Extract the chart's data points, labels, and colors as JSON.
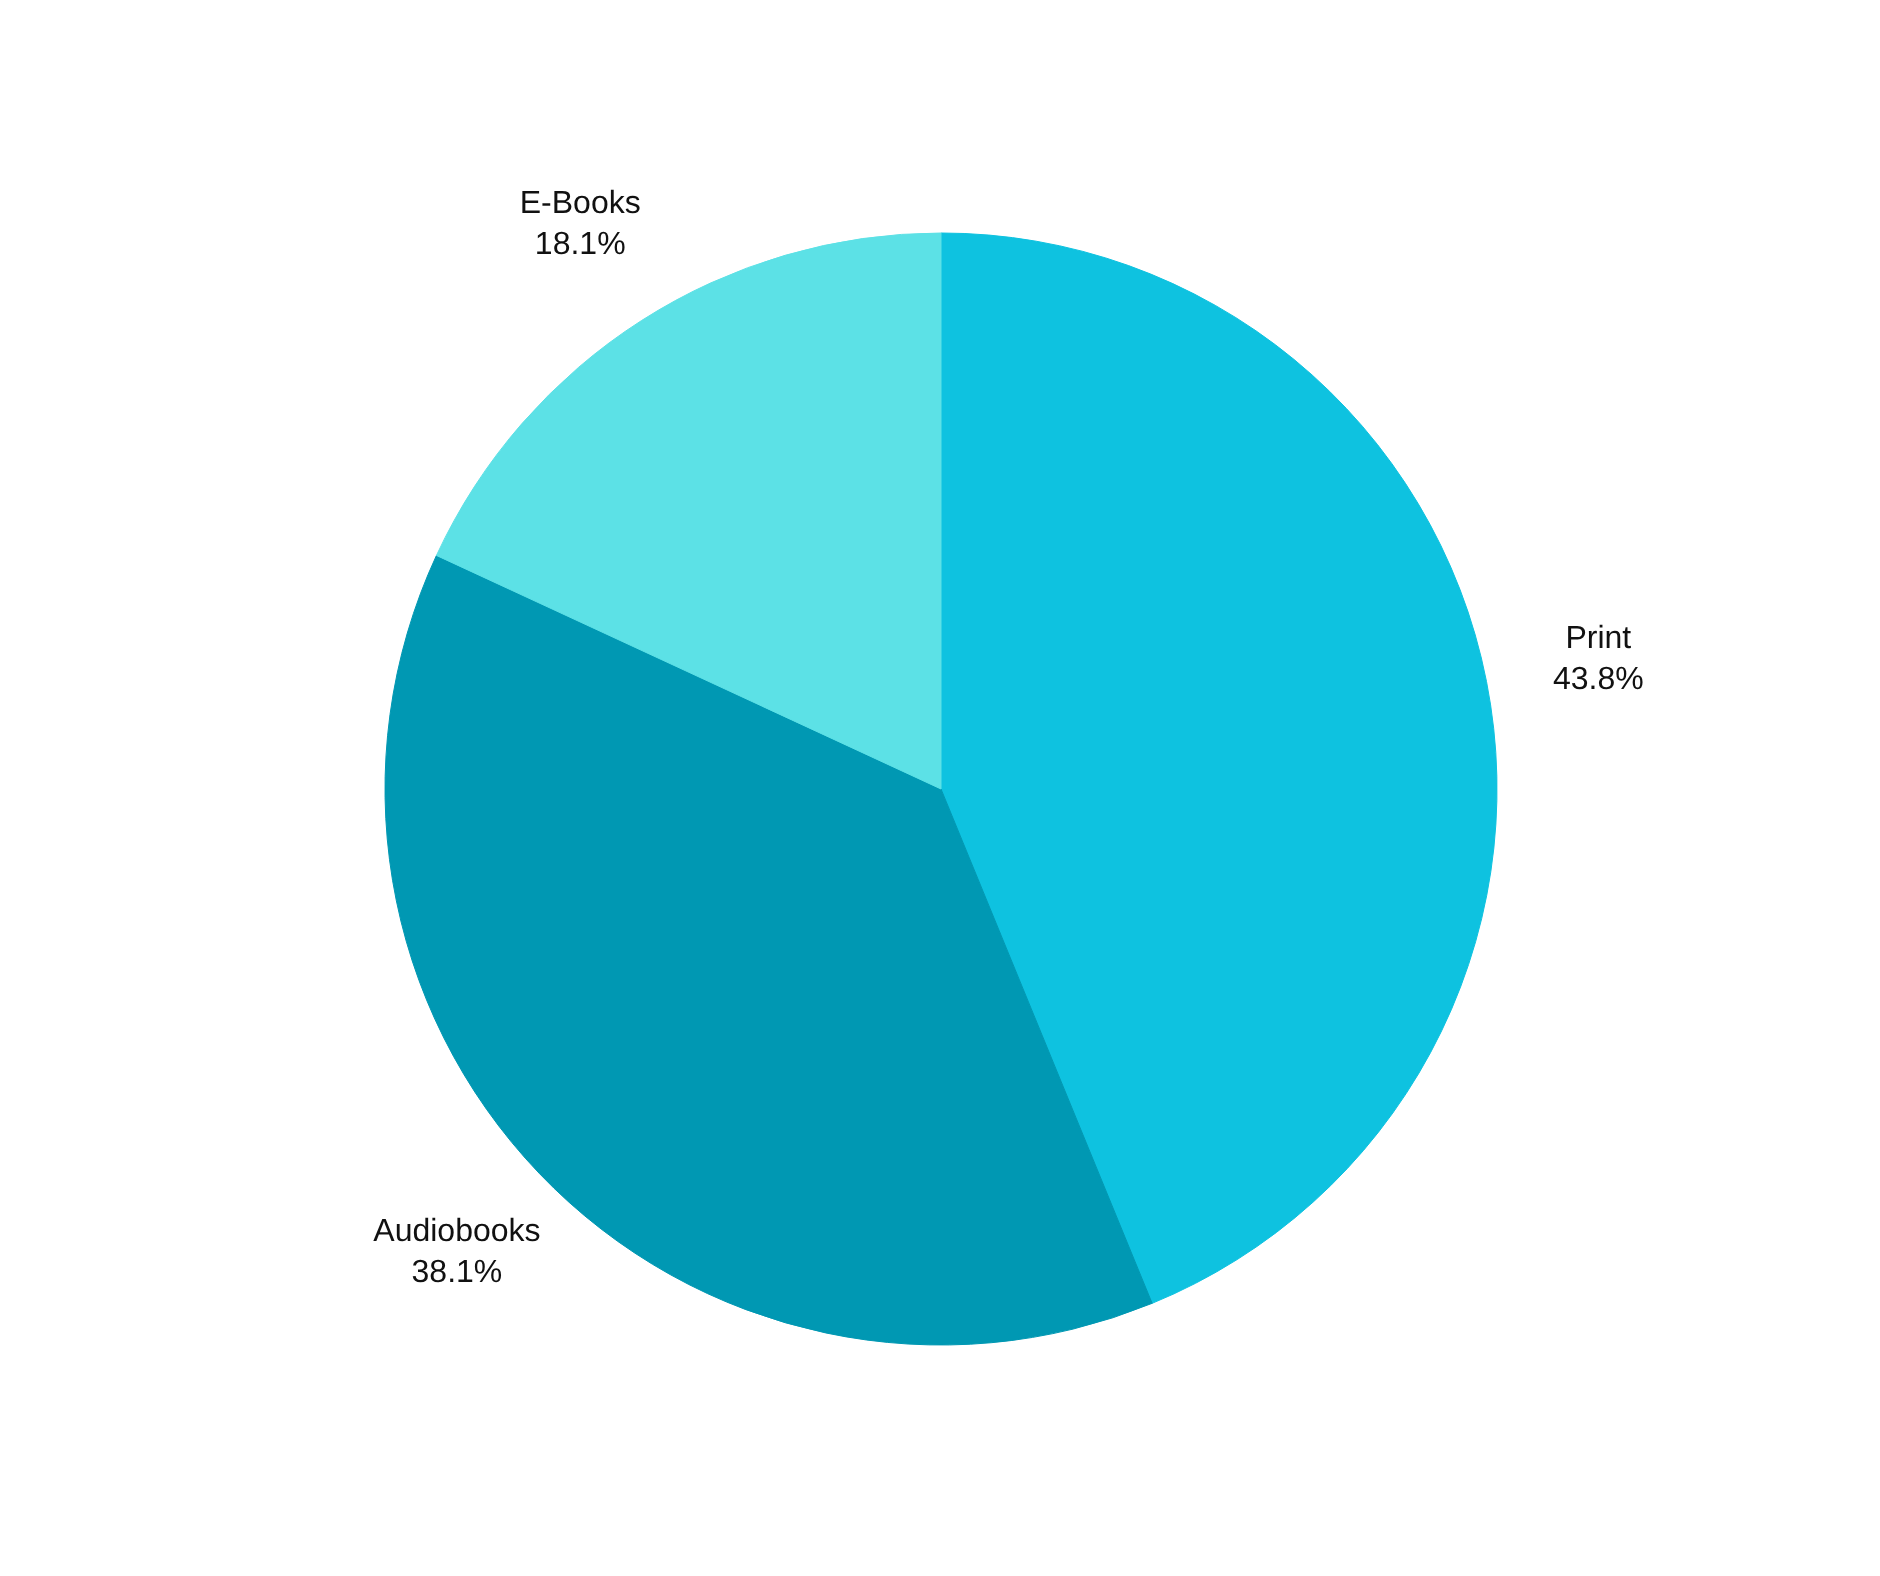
{
  "chart_data": {
    "type": "pie",
    "categories": [
      "Print",
      "Audiobooks",
      "E-Books"
    ],
    "values": [
      43.8,
      38.1,
      18.1
    ],
    "value_labels": [
      "43.8%",
      "38.1%",
      "18.1%"
    ],
    "colors": [
      "#0ec2e0",
      "#0098b3",
      "#5ce1e6"
    ]
  }
}
